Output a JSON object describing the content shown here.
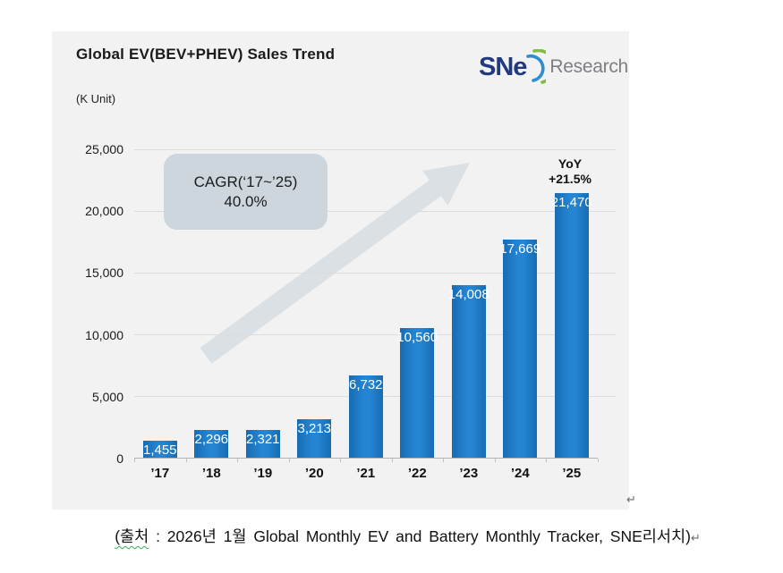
{
  "header": {
    "title": "Global EV(BEV+PHEV) Sales Trend",
    "unit_label": "(K Unit)"
  },
  "logo": {
    "wordmark": "SNe",
    "suffix": "Research"
  },
  "annotations": {
    "cagr": {
      "line1": "CAGR(‘17~’25)",
      "line2": "40.0%"
    },
    "yoy": {
      "line1": "YoY",
      "line2": "+21.5%"
    }
  },
  "chart_data": {
    "type": "bar",
    "title": "Global EV(BEV+PHEV) Sales Trend",
    "xlabel": "",
    "ylabel": "(K Unit)",
    "categories": [
      "’17",
      "’18",
      "’19",
      "’20",
      "’21",
      "’22",
      "’23",
      "’24",
      "’25"
    ],
    "values": [
      1455,
      2296,
      2321,
      3213,
      6732,
      10560,
      14008,
      17669,
      21470
    ],
    "value_labels": [
      "1,455",
      "2,296",
      "2,321",
      "3,213",
      "6,732",
      "10,560",
      "14,008",
      "17,669",
      "21,470"
    ],
    "ylim": [
      0,
      25000
    ],
    "yticks": [
      0,
      5000,
      10000,
      15000,
      20000,
      25000
    ],
    "ytick_labels": [
      "0",
      "5,000",
      "10,000",
      "15,000",
      "20,000",
      "25,000"
    ],
    "grid": true,
    "legend_position": "none",
    "bar_color": "#1e7bc6",
    "annotations": [
      "CAGR(‘17~’25) 40.0%",
      "YoY +21.5%"
    ]
  },
  "colors": {
    "panel_bg": "#f2f2f2",
    "bar_blue": "#1e7bc6",
    "cagr_box_bg": "#ccd6dc",
    "arrow_gray": "#d8dee2",
    "logo_navy": "#21397f",
    "logo_arc_blue": "#2c8fd0",
    "logo_arc_green": "#84bc3c",
    "squiggle_green": "#3aa655"
  },
  "caption": {
    "source_part": "(출처",
    "rest": " : 2026년 1월 Global Monthly EV and Battery Monthly Tracker, SNE리서치)",
    "return_mark": "↵"
  },
  "marks": {
    "panel_return": "↵"
  }
}
